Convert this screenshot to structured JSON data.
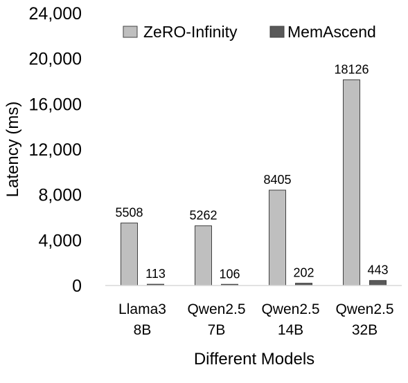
{
  "chart_data": {
    "type": "bar",
    "title": "",
    "xlabel": "Different Models",
    "ylabel": "Latency (ms)",
    "ylim": [
      0,
      24000
    ],
    "yticks": [
      "0",
      "4,000",
      "8,000",
      "12,000",
      "16,000",
      "20,000",
      "24,000"
    ],
    "ytick_values": [
      0,
      4000,
      8000,
      12000,
      16000,
      20000,
      24000
    ],
    "grid": false,
    "legend_position": "top",
    "categories": [
      [
        "Llama3",
        "8B"
      ],
      [
        "Qwen2.5",
        "7B"
      ],
      [
        "Qwen2.5",
        "14B"
      ],
      [
        "Qwen2.5",
        "32B"
      ]
    ],
    "series": [
      {
        "name": "ZeRO-Infinity",
        "color": "#bfbfbf",
        "values": [
          5508,
          5262,
          8405,
          18126
        ],
        "labels": [
          "5508",
          "5262",
          "8405",
          "18126"
        ]
      },
      {
        "name": "MemAscend",
        "color": "#595959",
        "values": [
          113,
          106,
          202,
          443
        ],
        "labels": [
          "113",
          "106",
          "202",
          "443"
        ]
      }
    ]
  }
}
